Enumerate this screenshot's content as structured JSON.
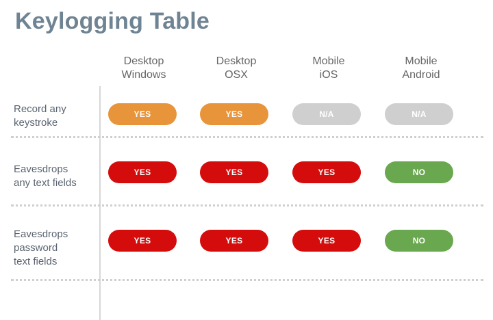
{
  "title": "Keylogging Table",
  "columns": [
    [
      "Desktop",
      "Windows"
    ],
    [
      "Desktop",
      "OSX"
    ],
    [
      "Mobile",
      "iOS"
    ],
    [
      "Mobile",
      "Android"
    ]
  ],
  "rows": [
    {
      "label": [
        "Record any",
        "keystroke"
      ],
      "cells": [
        {
          "text": "YES",
          "color": "#e8943a"
        },
        {
          "text": "YES",
          "color": "#e8943a"
        },
        {
          "text": "N/A",
          "color": "#cfcfcf"
        },
        {
          "text": "N/A",
          "color": "#cfcfcf"
        }
      ]
    },
    {
      "label": [
        "Eavesdrops",
        "any text fields"
      ],
      "cells": [
        {
          "text": "YES",
          "color": "#d40c0c"
        },
        {
          "text": "YES",
          "color": "#d40c0c"
        },
        {
          "text": "YES",
          "color": "#d40c0c"
        },
        {
          "text": "NO",
          "color": "#6aa84f"
        }
      ]
    },
    {
      "label": [
        "Eavesdrops",
        "password",
        "text fields"
      ],
      "cells": [
        {
          "text": "YES",
          "color": "#d40c0c"
        },
        {
          "text": "YES",
          "color": "#d40c0c"
        },
        {
          "text": "YES",
          "color": "#d40c0c"
        },
        {
          "text": "NO",
          "color": "#6aa84f"
        }
      ]
    }
  ]
}
